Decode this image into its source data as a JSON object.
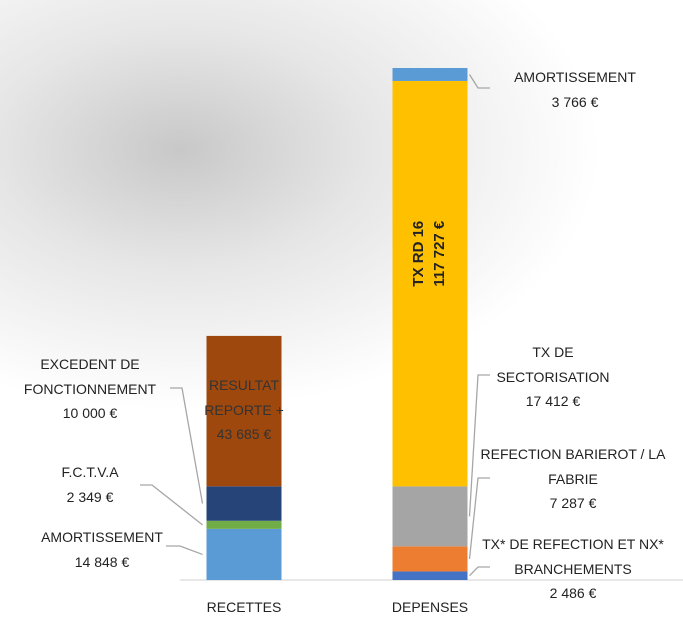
{
  "chart_data": {
    "type": "bar",
    "stacked": true,
    "categories": [
      "RECETTES",
      "DEPENSES"
    ],
    "stacks": [
      [
        {
          "name": "AMORTISSEMENT",
          "value": 14848,
          "value_label": "14 848 €",
          "color": "#5b9bd5"
        },
        {
          "name": "F.C.T.V.A",
          "value": 2349,
          "value_label": "2 349 €",
          "color": "#70ad47"
        },
        {
          "name": "EXCEDENT DE FONCTIONNEMENT",
          "value": 10000,
          "value_label": "10 000 €",
          "color": "#264478"
        },
        {
          "name": "RESULTAT REPORTE +",
          "value": 43685,
          "value_label": "43 685 €",
          "color": "#9e480e"
        }
      ],
      [
        {
          "name": "TX* DE REFECTION ET NX* BRANCHEMENTS",
          "value": 2486,
          "value_label": "2 486 €",
          "color": "#4472c4"
        },
        {
          "name": "REFECTION BARIEROT / LA FABRIE",
          "value": 7287,
          "value_label": "7 287 €",
          "color": "#ed7d31"
        },
        {
          "name": "TX DE SECTORISATION",
          "value": 17412,
          "value_label": "17 412 €",
          "color": "#a5a5a5"
        },
        {
          "name": "TX RD 16",
          "value": 117727,
          "value_label": "117 727 €",
          "color": "#ffc000"
        },
        {
          "name": "AMORTISSEMENT",
          "value": 3766,
          "value_label": "3 766 €",
          "color": "#5b9bd5"
        }
      ]
    ]
  }
}
